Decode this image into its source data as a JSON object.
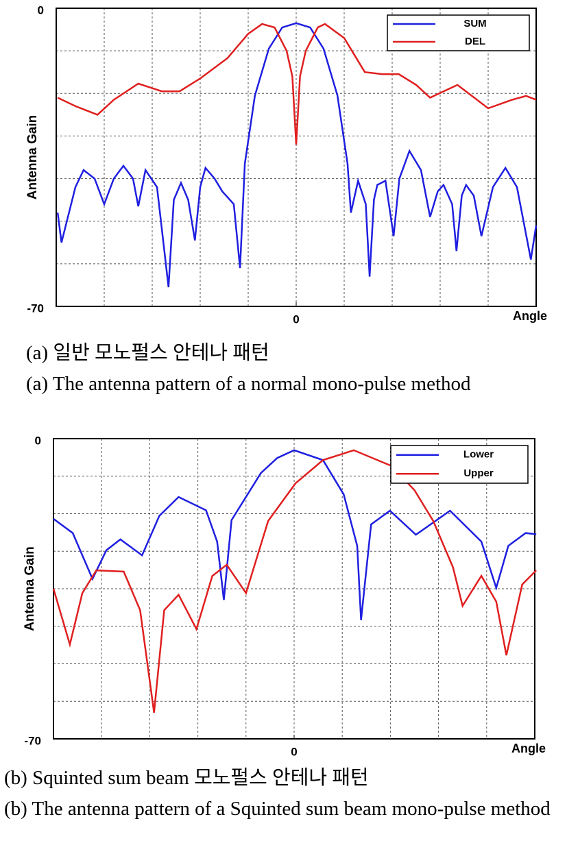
{
  "chart_data": [
    {
      "type": "line",
      "ylabel": "Antenna Gain",
      "xlabel": "Angle",
      "grid": true,
      "legend": "upper right",
      "xlim": [
        -5,
        5
      ],
      "xticks": [
        0
      ],
      "ylim": [
        -70,
        0
      ],
      "yticks": [
        -70,
        0
      ],
      "caption_ko": "(a) 일반 모노펄스 안테나 패턴",
      "caption_en": "(a) The antenna pattern of a normal mono-pulse method",
      "series": [
        {
          "name": "SUM",
          "color": "#1f1fe0",
          "x": [
            -4.97,
            -4.89,
            -4.6,
            -4.43,
            -4.2,
            -4.0,
            -3.8,
            -3.6,
            -3.4,
            -3.29,
            -3.14,
            -2.9,
            -2.66,
            -2.55,
            -2.4,
            -2.25,
            -2.11,
            -2.0,
            -1.89,
            -1.7,
            -1.54,
            -1.3,
            -1.17,
            -1.07,
            -0.86,
            -0.57,
            -0.29,
            0,
            0.29,
            0.57,
            0.86,
            1.07,
            1.14,
            1.29,
            1.45,
            1.53,
            1.62,
            1.69,
            1.86,
            2.03,
            2.15,
            2.36,
            2.6,
            2.79,
            2.95,
            3.07,
            3.25,
            3.34,
            3.45,
            3.54,
            3.7,
            3.86,
            4.1,
            4.36,
            4.6,
            4.89,
            5.0
          ],
          "values": [
            -48,
            -55,
            -42,
            -38,
            -40,
            -46,
            -40,
            -37,
            -40,
            -46.5,
            -38,
            -42,
            -65.5,
            -45,
            -41,
            -45,
            -54.5,
            -42,
            -37.5,
            -40,
            -43,
            -46,
            -61,
            -36.5,
            -20.5,
            -9.5,
            -4.5,
            -3.5,
            -4.5,
            -9.5,
            -20.5,
            -36.5,
            -48,
            -40.5,
            -46,
            -63,
            -45,
            -41.5,
            -40.5,
            -53.5,
            -40,
            -33.5,
            -38,
            -49,
            -43,
            -41.5,
            -46,
            -57,
            -44,
            -41.5,
            -44,
            -53.5,
            -42,
            -37.5,
            -42,
            -59,
            -51
          ]
        },
        {
          "name": "DEL",
          "color": "#e01f1f",
          "x": [
            -4.97,
            -4.6,
            -4.14,
            -3.8,
            -3.29,
            -2.8,
            -2.43,
            -2.0,
            -1.43,
            -1.0,
            -0.71,
            -0.45,
            -0.2,
            -0.08,
            0,
            0.08,
            0.2,
            0.45,
            0.6,
            1.0,
            1.43,
            1.8,
            2.14,
            2.5,
            2.79,
            3.36,
            4.0,
            4.5,
            4.79,
            5.0
          ],
          "values": [
            -21,
            -23,
            -25,
            -21.5,
            -17.7,
            -19.5,
            -19.5,
            -16.5,
            -11.7,
            -6,
            -3.7,
            -4.5,
            -10,
            -16,
            -32,
            -16,
            -10,
            -4.5,
            -3.7,
            -7,
            -15,
            -15.5,
            -15.5,
            -18,
            -21,
            -18,
            -23.5,
            -21.5,
            -20.6,
            -21.5
          ]
        }
      ]
    },
    {
      "type": "line",
      "ylabel": "Antenna Gain",
      "xlabel": "Angle",
      "grid": true,
      "legend": "upper right",
      "xlim": [
        -5,
        5
      ],
      "xticks": [
        0
      ],
      "ylim": [
        -70,
        0
      ],
      "yticks": [
        -70,
        0
      ],
      "caption_ko": "(b) Squinted sum beam 모노펄스 안테나 패턴",
      "caption_en": "(b) The antenna pattern of a Squinted sum beam mono-pulse method",
      "series": [
        {
          "name": "Lower",
          "color": "#1f1fe0",
          "x": [
            -5,
            -4.6,
            -4.19,
            -3.9,
            -3.61,
            -3.16,
            -2.8,
            -2.4,
            -1.83,
            -1.6,
            -1.46,
            -1.3,
            -0.69,
            -0.35,
            0,
            0.6,
            1.03,
            1.31,
            1.39,
            1.6,
            1.99,
            2.53,
            3.24,
            3.89,
            4.2,
            4.45,
            4.81,
            5.03
          ],
          "values": [
            -18.7,
            -22,
            -32.7,
            -26,
            -23.5,
            -27.2,
            -18,
            -13.6,
            -16.7,
            -24,
            -37.6,
            -19,
            -8,
            -4.5,
            -2.7,
            -5,
            -13,
            -25,
            -42.3,
            -20,
            -16.8,
            -22.4,
            -16.8,
            -24,
            -34.8,
            -25,
            -22,
            -22.3
          ]
        },
        {
          "name": "Upper",
          "color": "#e01f1f",
          "x": [
            -5,
            -4.66,
            -4.4,
            -4.11,
            -3.54,
            -3.2,
            -2.91,
            -2.7,
            -2.4,
            -2.03,
            -1.7,
            -1.4,
            -1.0,
            -0.54,
            0.03,
            0.6,
            1.24,
            2.03,
            2.5,
            2.89,
            3.3,
            3.5,
            3.89,
            4.2,
            4.41,
            4.74,
            5.03
          ],
          "values": [
            -35,
            -48,
            -36,
            -30.7,
            -31,
            -40,
            -63.9,
            -40,
            -36.4,
            -44.4,
            -32,
            -29.4,
            -36,
            -19.2,
            -10.4,
            -5,
            -2.7,
            -6.4,
            -12,
            -19.2,
            -30,
            -39,
            -32,
            -38,
            -50.5,
            -34,
            -30.7
          ]
        }
      ]
    }
  ]
}
